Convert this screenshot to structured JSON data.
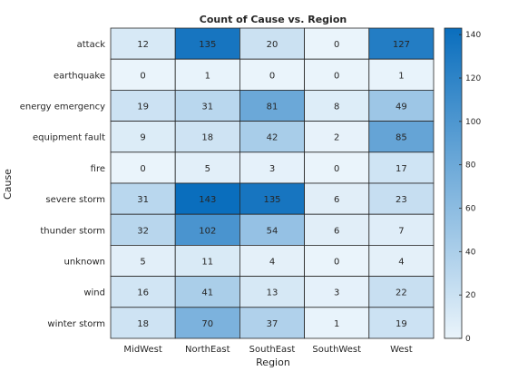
{
  "chart_data": {
    "type": "heatmap",
    "title": "Count of Cause vs. Region",
    "xlabel": "Region",
    "ylabel": "Cause",
    "x_categories": [
      "MidWest",
      "NorthEast",
      "SouthEast",
      "SouthWest",
      "West"
    ],
    "y_categories": [
      "attack",
      "earthquake",
      "energy emergency",
      "equipment fault",
      "fire",
      "severe storm",
      "thunder storm",
      "unknown",
      "wind",
      "winter storm"
    ],
    "values": [
      [
        12,
        135,
        20,
        0,
        127
      ],
      [
        0,
        1,
        0,
        0,
        1
      ],
      [
        19,
        31,
        81,
        8,
        49
      ],
      [
        9,
        18,
        42,
        2,
        85
      ],
      [
        0,
        5,
        3,
        0,
        17
      ],
      [
        31,
        143,
        135,
        6,
        23
      ],
      [
        32,
        102,
        54,
        6,
        7
      ],
      [
        5,
        11,
        4,
        0,
        4
      ],
      [
        16,
        41,
        13,
        3,
        22
      ],
      [
        18,
        70,
        37,
        1,
        19
      ]
    ],
    "colorbar": {
      "ticks": [
        0,
        20,
        40,
        60,
        80,
        100,
        120,
        140
      ],
      "range": [
        0,
        143
      ],
      "low_color": "#eaf4fb",
      "high_color": "#0a6ebd"
    },
    "grid": true
  }
}
